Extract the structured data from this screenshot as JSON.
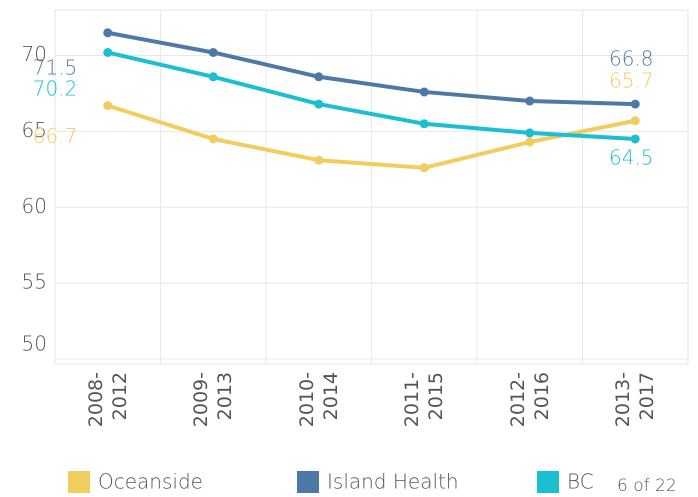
{
  "chart_data": {
    "type": "line",
    "categories": [
      "2008-2012",
      "2009-2013",
      "2010-2014",
      "2011-2015",
      "2012-2016",
      "2013-2017"
    ],
    "series": [
      {
        "name": "Oceanside",
        "color": "#f1cd5e",
        "values": [
          66.7,
          64.5,
          63.1,
          62.6,
          64.3,
          65.7
        ]
      },
      {
        "name": "Island Health",
        "color": "#4e79a7",
        "values": [
          71.5,
          70.2,
          68.6,
          67.6,
          67.0,
          66.8
        ]
      },
      {
        "name": "BC",
        "color": "#1bbfd0",
        "values": [
          70.2,
          68.6,
          66.8,
          65.5,
          64.9,
          64.5
        ]
      }
    ],
    "ylim": [
      50,
      73
    ],
    "yticks": [
      50,
      55,
      60,
      65,
      70
    ],
    "grid": true,
    "pager": "6 of 22"
  }
}
